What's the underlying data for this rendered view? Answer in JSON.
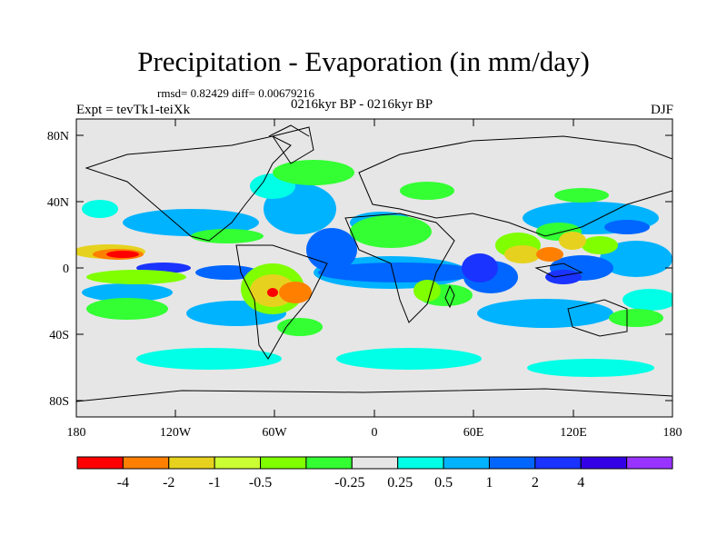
{
  "title": "Precipitation - Evaporation (in mm/day)",
  "stats_line": "rmsd= 0.82429 diff= 0.00679216",
  "period": "0216kyr BP - 0216kyr BP",
  "experiment": "Expt = tevTk1-teiXk",
  "season": "DJF",
  "axes": {
    "lat_ticks": [
      "80N",
      "40N",
      "0",
      "40S",
      "80S"
    ],
    "lon_ticks": [
      "180",
      "120W",
      "60W",
      "0",
      "60E",
      "120E",
      "180"
    ]
  },
  "map": {
    "projection": "cylindrical equidistant",
    "lon_range": [
      -180,
      180
    ],
    "lat_range": [
      -90,
      90
    ],
    "background_color": "#e6e6e6"
  },
  "colorbar": {
    "colors": [
      "#ff0000",
      "#ff8000",
      "#e6d21e",
      "#ccff33",
      "#7fff00",
      "#33ff33",
      "#e6e6e6",
      "#00ffe6",
      "#00b3ff",
      "#0066ff",
      "#1a33ff",
      "#3300e6",
      "#9933ff"
    ],
    "labels": [
      "-4",
      "-2",
      "-1",
      "-0.5",
      "-0.25",
      "0.25",
      "0.5",
      "1",
      "2",
      "4"
    ]
  }
}
